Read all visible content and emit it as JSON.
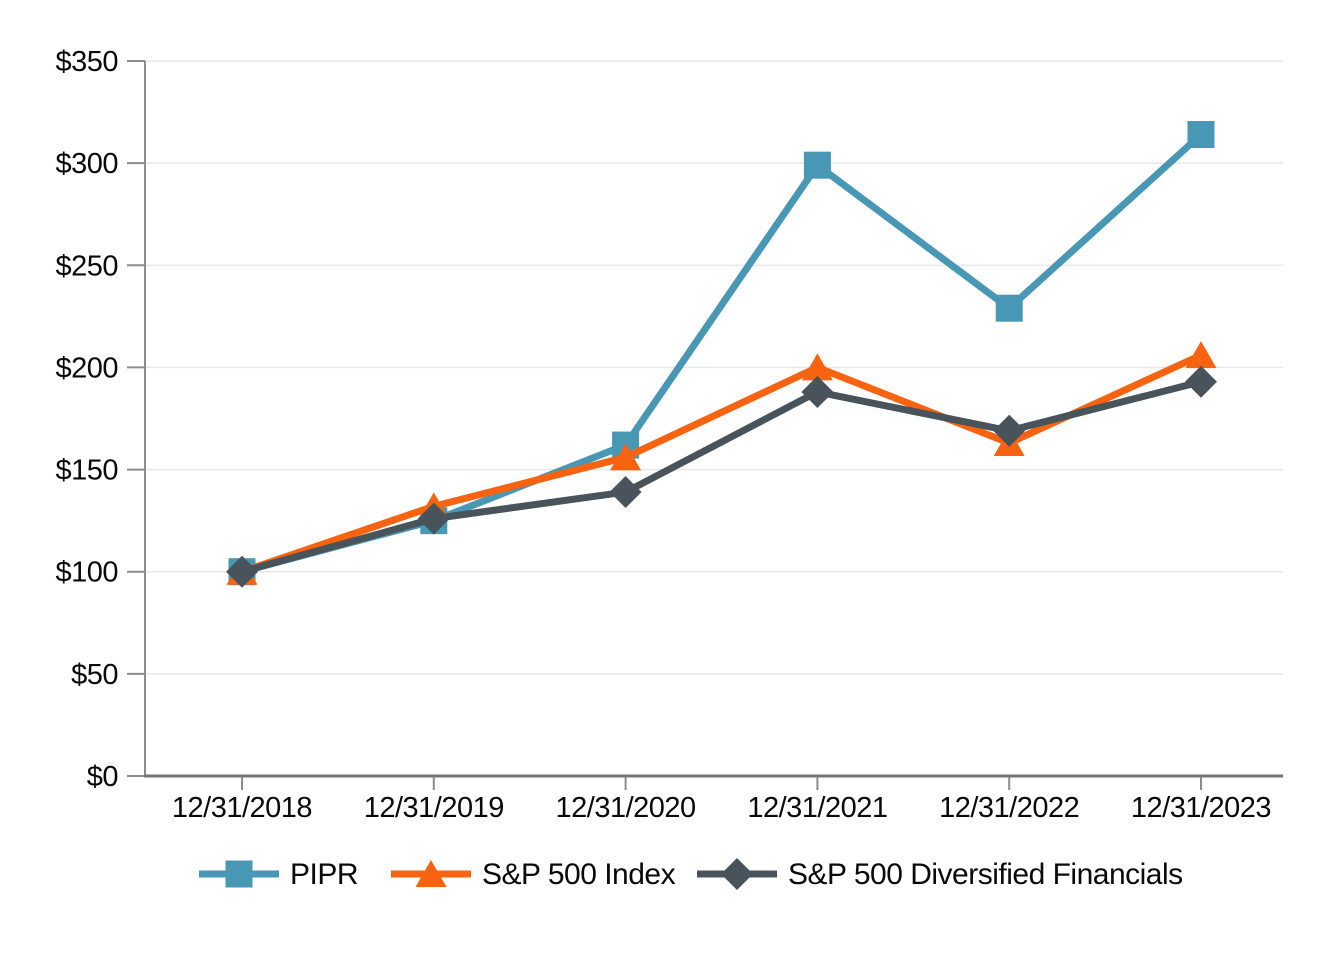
{
  "chart_data": {
    "type": "line",
    "title": "",
    "categories": [
      "12/31/2018",
      "12/31/2019",
      "12/31/2020",
      "12/31/2021",
      "12/31/2022",
      "12/31/2023"
    ],
    "series": [
      {
        "name": "PIPR",
        "marker": "square",
        "color": "#4897B4",
        "values": [
          100,
          125,
          162,
          299,
          229,
          314
        ]
      },
      {
        "name": "S&P 500 Index",
        "marker": "triangle",
        "color": "#F76310",
        "values": [
          100,
          132,
          156,
          200,
          163,
          206
        ]
      },
      {
        "name": "S&P 500 Diversified Financials",
        "marker": "diamond",
        "color": "#49535C",
        "values": [
          100,
          126,
          139,
          188,
          169,
          193
        ]
      }
    ],
    "xlabel": "",
    "ylabel": "",
    "ylim": [
      0,
      350
    ],
    "y_tick_step": 50,
    "y_tick_labels": [
      "$0",
      "$50",
      "$100",
      "$150",
      "$200",
      "$250",
      "$300",
      "$350"
    ],
    "grid": "horizontal",
    "legend_position": "bottom"
  },
  "colors": {
    "background": "#FFFFFF",
    "gridline": "#E8E8E8",
    "axis": "#8C8C8C",
    "x_axis_line": "#757575",
    "text": "#0A0A0A"
  }
}
